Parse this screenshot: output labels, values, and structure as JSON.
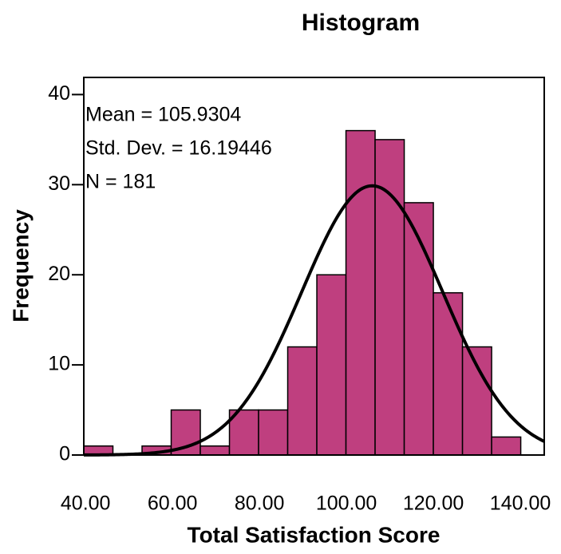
{
  "chart_data": {
    "type": "histogram",
    "title": "Histogram",
    "x_label": "Total Satisfaction Score",
    "y_label": "Frequency",
    "annotations": [
      "Mean = 105.9304",
      "Std. Dev. = 16.19446",
      "N = 181"
    ],
    "bins": [
      39.6,
      46.3,
      53.0,
      59.7,
      66.4,
      73.1,
      79.8,
      86.5,
      93.2,
      99.9,
      106.6,
      113.3,
      120.0,
      126.7,
      133.4,
      140.1
    ],
    "values": [
      1,
      0,
      1,
      5,
      1,
      5,
      5,
      12,
      20,
      36,
      35,
      28,
      18,
      12,
      2
    ],
    "color": "#bf3f7f",
    "normal_curve": {
      "mean": 105.9304,
      "std": 16.19446,
      "n": 181
    },
    "xlim": [
      39.6,
      145.5
    ],
    "ylim": [
      0,
      41.9
    ],
    "xticks": [
      {
        "value": 40,
        "label": "40.00"
      },
      {
        "value": 60,
        "label": "60.00"
      },
      {
        "value": 80,
        "label": "80.00"
      },
      {
        "value": 100,
        "label": "100.00"
      },
      {
        "value": 120,
        "label": "120.00"
      },
      {
        "value": 140,
        "label": "140.00"
      }
    ],
    "yticks": [
      0,
      10,
      20,
      30,
      40
    ]
  }
}
